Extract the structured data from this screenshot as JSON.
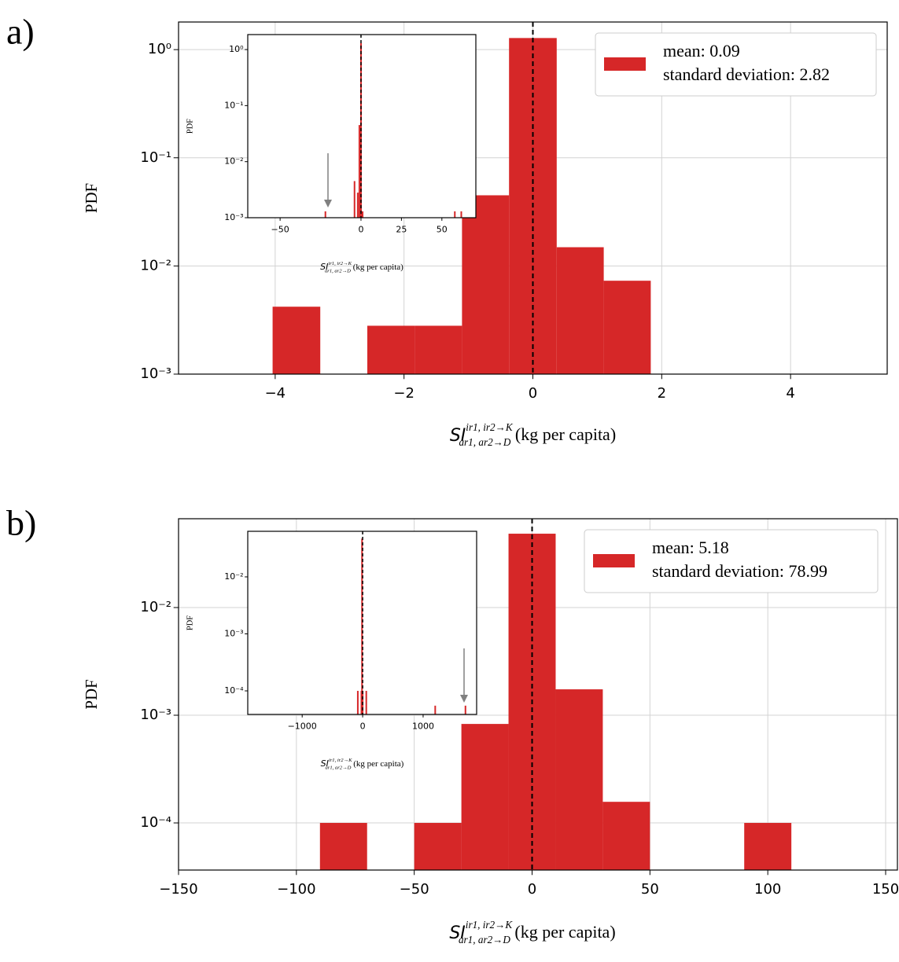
{
  "chart_data": [
    {
      "type": "histogram",
      "panel_label": "a)",
      "ylabel": "PDF",
      "xlabel": {
        "base": "SI",
        "sup": "ir1, ir2→K",
        "sub": "ar1, ar2→D",
        "unit": "(kg per capita)"
      },
      "bins": [
        -4.04,
        -3.3,
        -2.57,
        -1.83,
        -1.1,
        -0.37,
        0.37,
        1.1,
        1.83
      ],
      "values": [
        0.0042,
        0,
        0.0028,
        0.0028,
        0.045,
        1.28,
        0.0149,
        0.0073
      ],
      "color": "#d62728",
      "log_y": true,
      "grid": true,
      "vline": 0,
      "legend": [
        "mean: 0.09",
        "standard deviation: 2.82"
      ],
      "xlim": [
        -5.5,
        5.5
      ],
      "ylim": [
        0.001,
        1.8
      ],
      "xticks": [
        {
          "value": -4,
          "label": "−4"
        },
        {
          "value": -2,
          "label": "−2"
        },
        0,
        2,
        4
      ],
      "yticks": [
        {
          "value": 1,
          "label": "10⁰"
        },
        {
          "value": 0.1,
          "label": "10⁻¹"
        },
        {
          "value": 0.01,
          "label": "10⁻²"
        },
        {
          "value": 0.001,
          "label": "10⁻³"
        }
      ]
    },
    {
      "type": "bar",
      "ylabel": "PDF",
      "xlabel": {
        "base": "SI",
        "sup": "ir1, ir2→K",
        "sub": "ar1, ar2→D",
        "unit": "(kg per capita)"
      },
      "x": [
        -22,
        -4,
        -2,
        -1,
        0,
        1,
        58,
        62
      ],
      "values": [
        0.0013,
        0.0045,
        0.0028,
        0.045,
        1.3,
        0.0013,
        0.0013,
        0.0013
      ],
      "color": "#d62728",
      "log_y": true,
      "grid": false,
      "vline": 0,
      "xlim": [
        -70,
        71
      ],
      "ylim": [
        0.001,
        1.85
      ],
      "xticks": [
        {
          "value": -50,
          "label": "−50"
        },
        0,
        25,
        50
      ],
      "yticks": [
        {
          "value": 1,
          "label": "10⁰"
        },
        {
          "value": 0.1,
          "label": "10⁻¹"
        },
        {
          "value": 0.01,
          "label": "10⁻²"
        },
        {
          "value": 0.001,
          "label": "10⁻³"
        }
      ]
    },
    {
      "type": "histogram",
      "panel_label": "b)",
      "ylabel": "PDF",
      "xlabel": {
        "base": "SI",
        "sup": "ir1, ir2→K",
        "sub": "ar1, ar2→D",
        "unit": "(kg per capita)"
      },
      "bins": [
        -90,
        -70,
        -50,
        -30,
        -10,
        10,
        30,
        50,
        70,
        90,
        110
      ],
      "values": [
        0.0001,
        0,
        0.0001,
        0.00083,
        0.0485,
        0.00174,
        0.000157,
        0,
        0,
        0.0001
      ],
      "color": "#d62728",
      "log_y": true,
      "grid": true,
      "vline": 0,
      "legend": [
        "mean: 5.18",
        "standard deviation: 78.99"
      ],
      "xlim": [
        -150,
        155
      ],
      "ylim": [
        3.65e-05,
        0.0668
      ],
      "xticks": [
        {
          "value": -150,
          "label": "−150"
        },
        {
          "value": -100,
          "label": "−100"
        },
        {
          "value": -50,
          "label": "−50"
        },
        0,
        50,
        100,
        150
      ],
      "yticks": [
        {
          "value": 0.01,
          "label": "10⁻²"
        },
        {
          "value": 0.001,
          "label": "10⁻³"
        },
        {
          "value": 0.0001,
          "label": "10⁻⁴"
        }
      ]
    },
    {
      "type": "bar",
      "ylabel": "PDF",
      "xlabel": {
        "base": "SI",
        "sup": "ir1, ir2→K",
        "sub": "ar1, ar2→D",
        "unit": "(kg per capita)"
      },
      "x": [
        -80,
        -20,
        -10,
        0,
        60,
        1200,
        1700
      ],
      "values": [
        0.0001,
        0.0001,
        0.047,
        0.0001,
        0.0001,
        5.5e-05,
        5.5e-05
      ],
      "color": "#d62728",
      "log_y": true,
      "grid": false,
      "vline": 0,
      "xlim": [
        -1900,
        1885
      ],
      "ylim": [
        3.86e-05,
        0.063
      ],
      "xticks": [
        {
          "value": -1000,
          "label": "−1000"
        },
        0,
        1000
      ],
      "yticks": [
        {
          "value": 0.01,
          "label": "10⁻²"
        },
        {
          "value": 0.001,
          "label": "10⁻³"
        },
        {
          "value": 0.0001,
          "label": "10⁻⁴"
        }
      ]
    }
  ]
}
